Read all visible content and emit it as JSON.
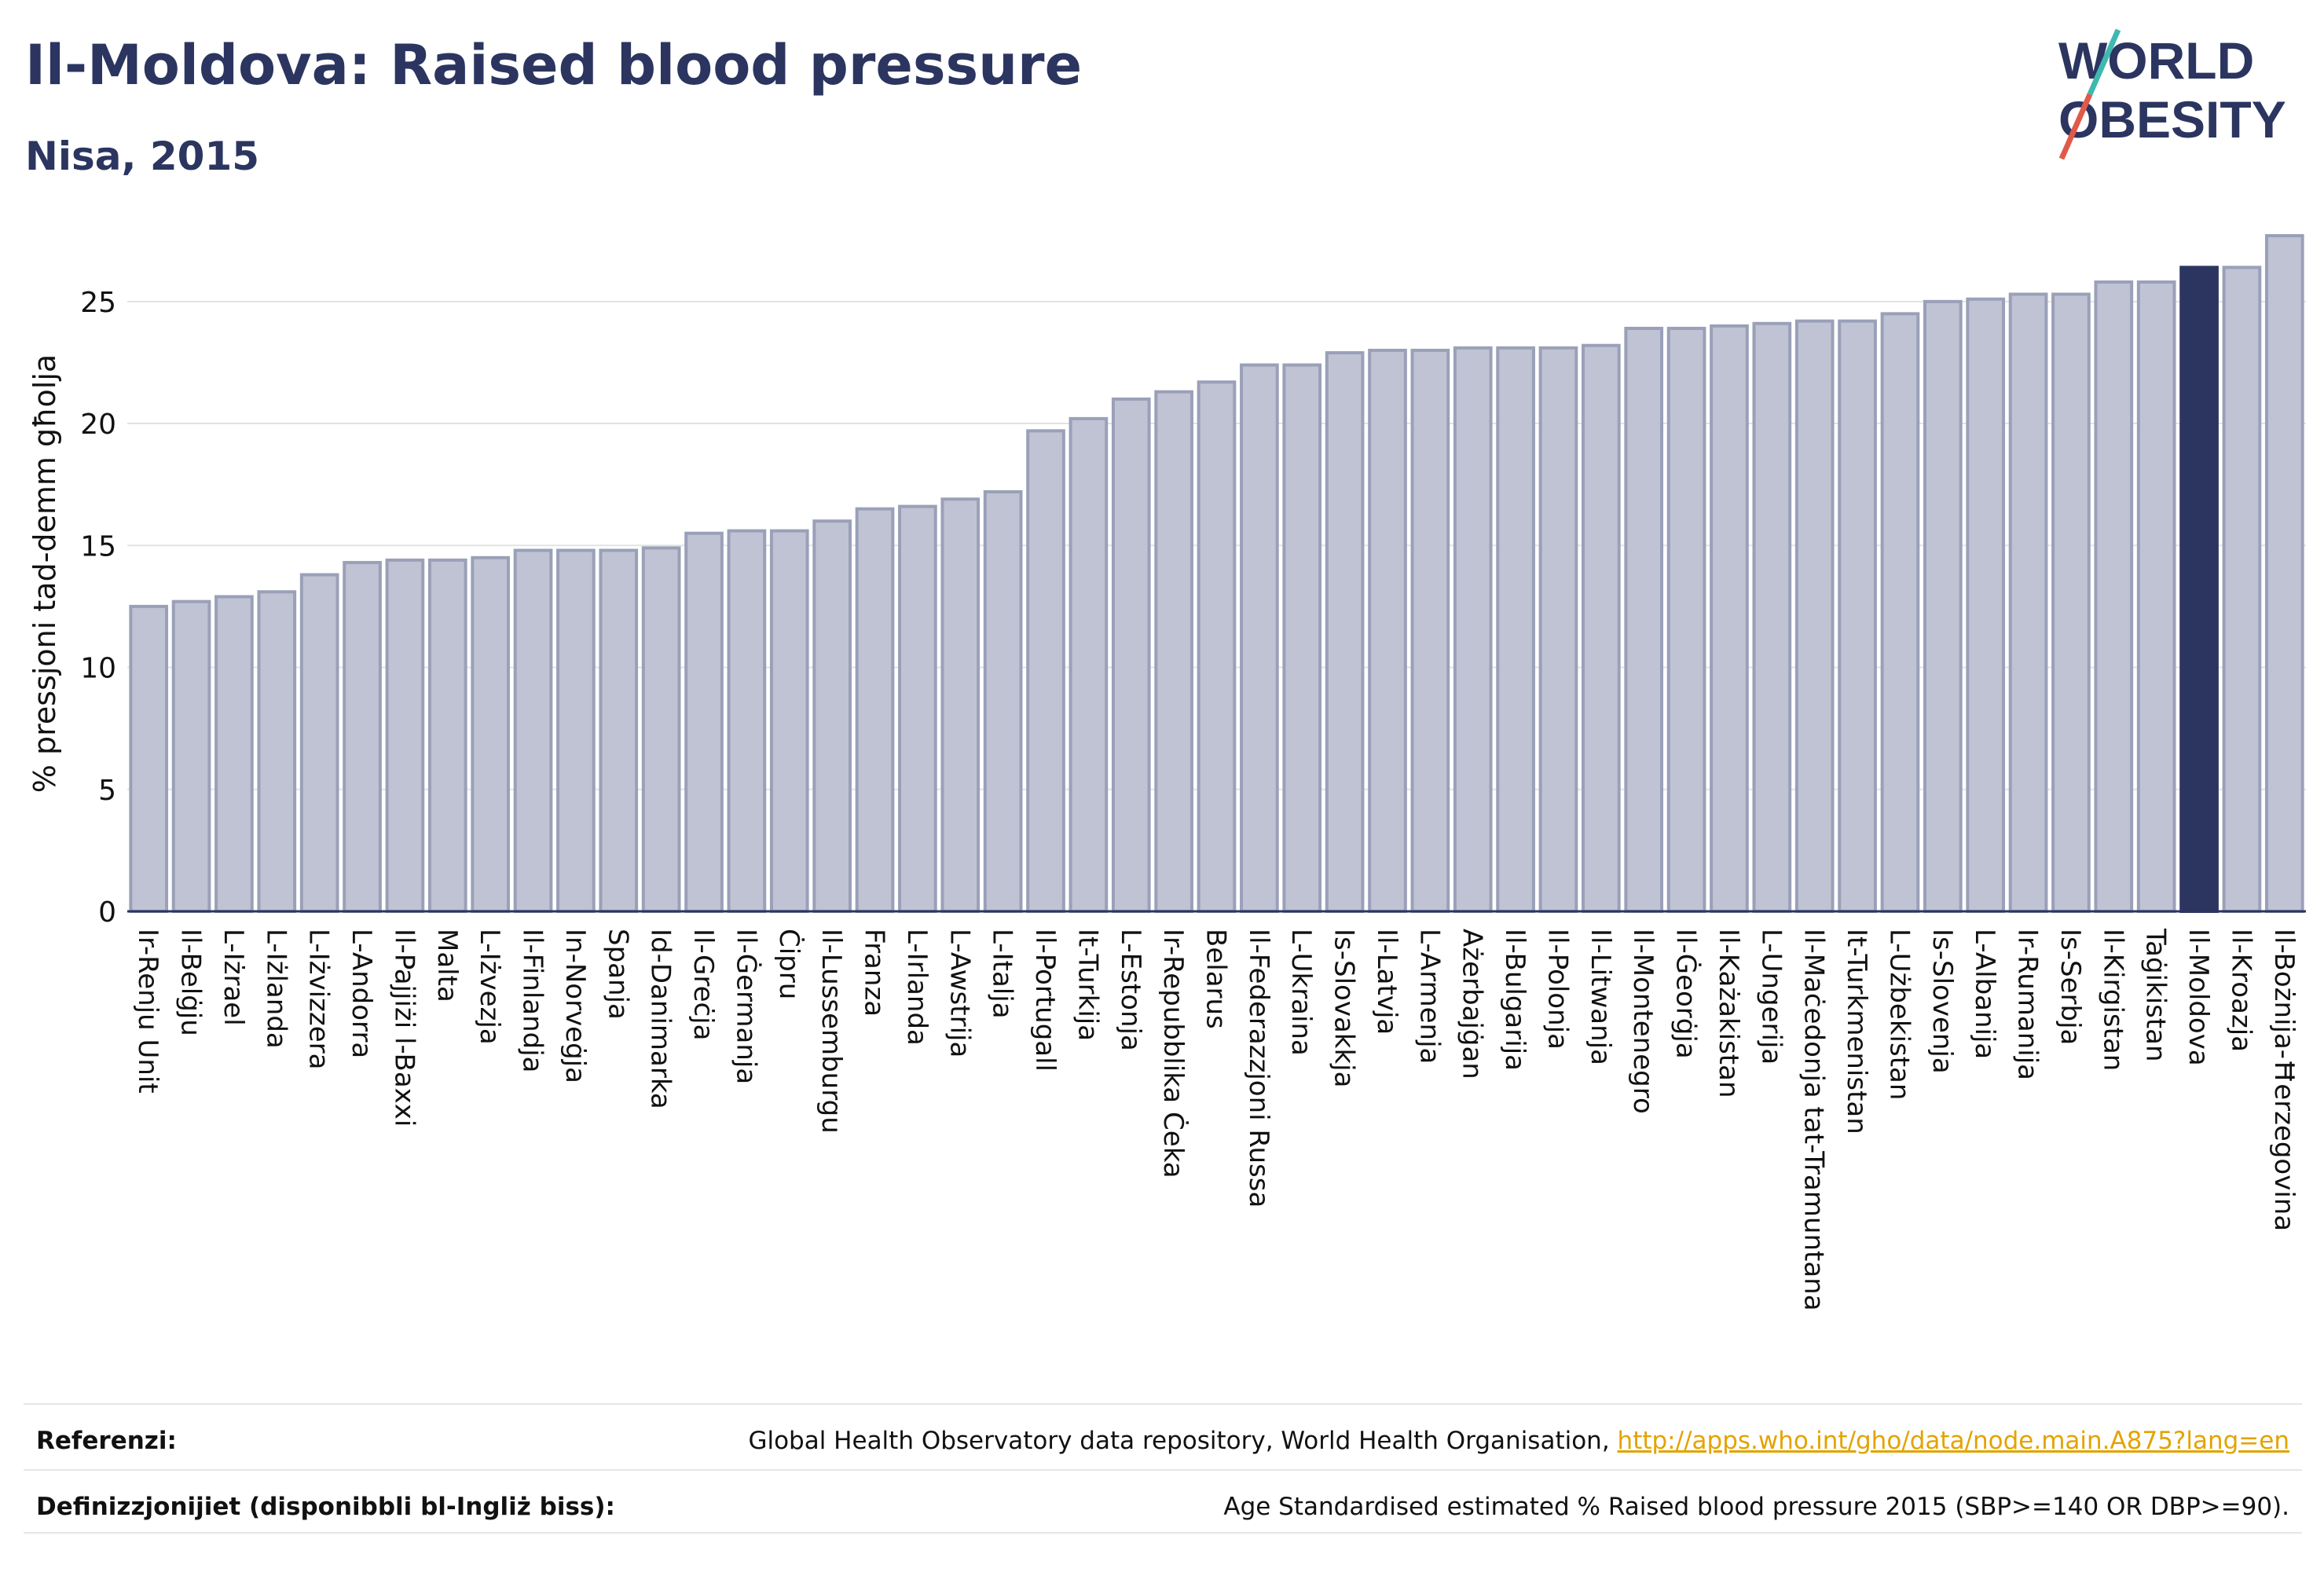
{
  "header": {
    "title": "Il-Moldova: Raised blood pressure",
    "subtitle": "Nisa, 2015"
  },
  "logo": {
    "line1": "WORLD",
    "line2": "OBESITY"
  },
  "colors": {
    "bar": "#bfc3d3",
    "bar_stroke": "#9aa0b8",
    "highlight": "#2b3560",
    "title": "#2b3560",
    "link": "#e3a300"
  },
  "chart_data": {
    "type": "bar",
    "ylabel": "% pressjoni tad-demm għolja",
    "ylim": [
      0,
      27.7
    ],
    "yticks": [
      0,
      5,
      10,
      15,
      20,
      25
    ],
    "grid": true,
    "highlight": "Il-Moldova",
    "categories": [
      "Ir-Renju Unit",
      "Il-Belġju",
      "L-Iżrael",
      "L-Iżlanda",
      "L-Iżvizzera",
      "L-Andorra",
      "Il-Pajjiżi l-Baxxi",
      "Malta",
      "L-Iżvezja",
      "Il-Finlandja",
      "In-Norveġja",
      "Spanja",
      "Id-Danimarka",
      "Il-Greċja",
      "Il-Ġermanja",
      "Ċipru",
      "Il-Lussemburgu",
      "Franza",
      "L-Irlanda",
      "L-Awstrija",
      "L-Italja",
      "Il-Portugall",
      "It-Turkija",
      "L-Estonja",
      "Ir-Repubblika Ċeka",
      "Belarus",
      "Il-Federazzjoni Russa",
      "L-Ukraina",
      "Is-Slovakkja",
      "Il-Latvja",
      "L-Armenja",
      "Ażerbajġan",
      "Il-Bulgarija",
      "Il-Polonja",
      "Il-Litwanja",
      "Il-Montenegro",
      "Il-Ġeorġja",
      "Il-Każakistan",
      "L-Ungerija",
      "Il-Maċedonja tat-Tramuntana",
      "It-Turkmenistan",
      "L-Użbekistan",
      "Is-Slovenja",
      "L-Albanija",
      "Ir-Rumanija",
      "Is-Serbja",
      "Il-Kirgistan",
      "Taġikistan",
      "Il-Moldova",
      "Il-Kroazja",
      "Il-Bożnija-Ħerzegovina"
    ],
    "values": [
      12.5,
      12.7,
      12.9,
      13.1,
      13.8,
      14.3,
      14.4,
      14.4,
      14.5,
      14.8,
      14.8,
      14.8,
      14.9,
      15.5,
      15.6,
      15.6,
      16.0,
      16.5,
      16.6,
      16.9,
      17.2,
      19.7,
      20.2,
      21.0,
      21.3,
      21.7,
      22.4,
      22.4,
      22.9,
      23.0,
      23.0,
      23.1,
      23.1,
      23.1,
      23.2,
      23.9,
      23.9,
      24.0,
      24.1,
      24.2,
      24.2,
      24.5,
      25.0,
      25.1,
      25.3,
      25.3,
      25.8,
      25.8,
      26.4,
      26.4,
      27.7
    ]
  },
  "footer": {
    "ref_label": "Referenzi:",
    "ref_text": "Global Health Observatory data repository, World Health Organisation, ",
    "ref_link": "http://apps.who.int/gho/data/node.main.A875?lang=en",
    "def_label": "Definizzjonijiet (disponibbli bl-Ingliż biss):",
    "def_text": "Age Standardised estimated % Raised blood pressure 2015 (SBP>=140 OR DBP>=90)."
  }
}
